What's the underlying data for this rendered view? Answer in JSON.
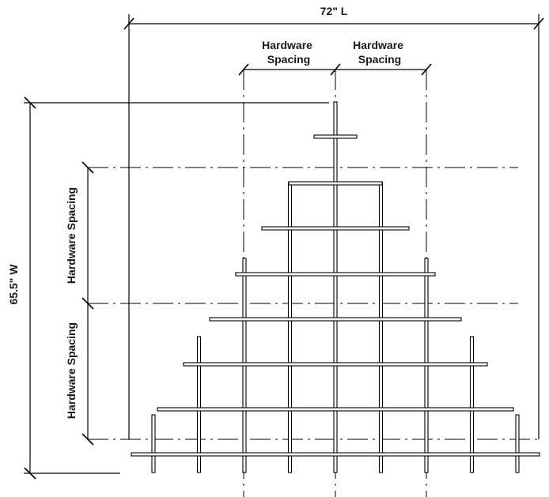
{
  "dimensions": {
    "length_label": "72\" L",
    "width_label": "65.5\" W"
  },
  "hardware_spacing": {
    "top_left": [
      "Hardware",
      "Spacing"
    ],
    "top_right": [
      "Hardware",
      "Spacing"
    ],
    "side_upper": "Hardware Spacing",
    "side_lower": "Hardware Spacing"
  }
}
